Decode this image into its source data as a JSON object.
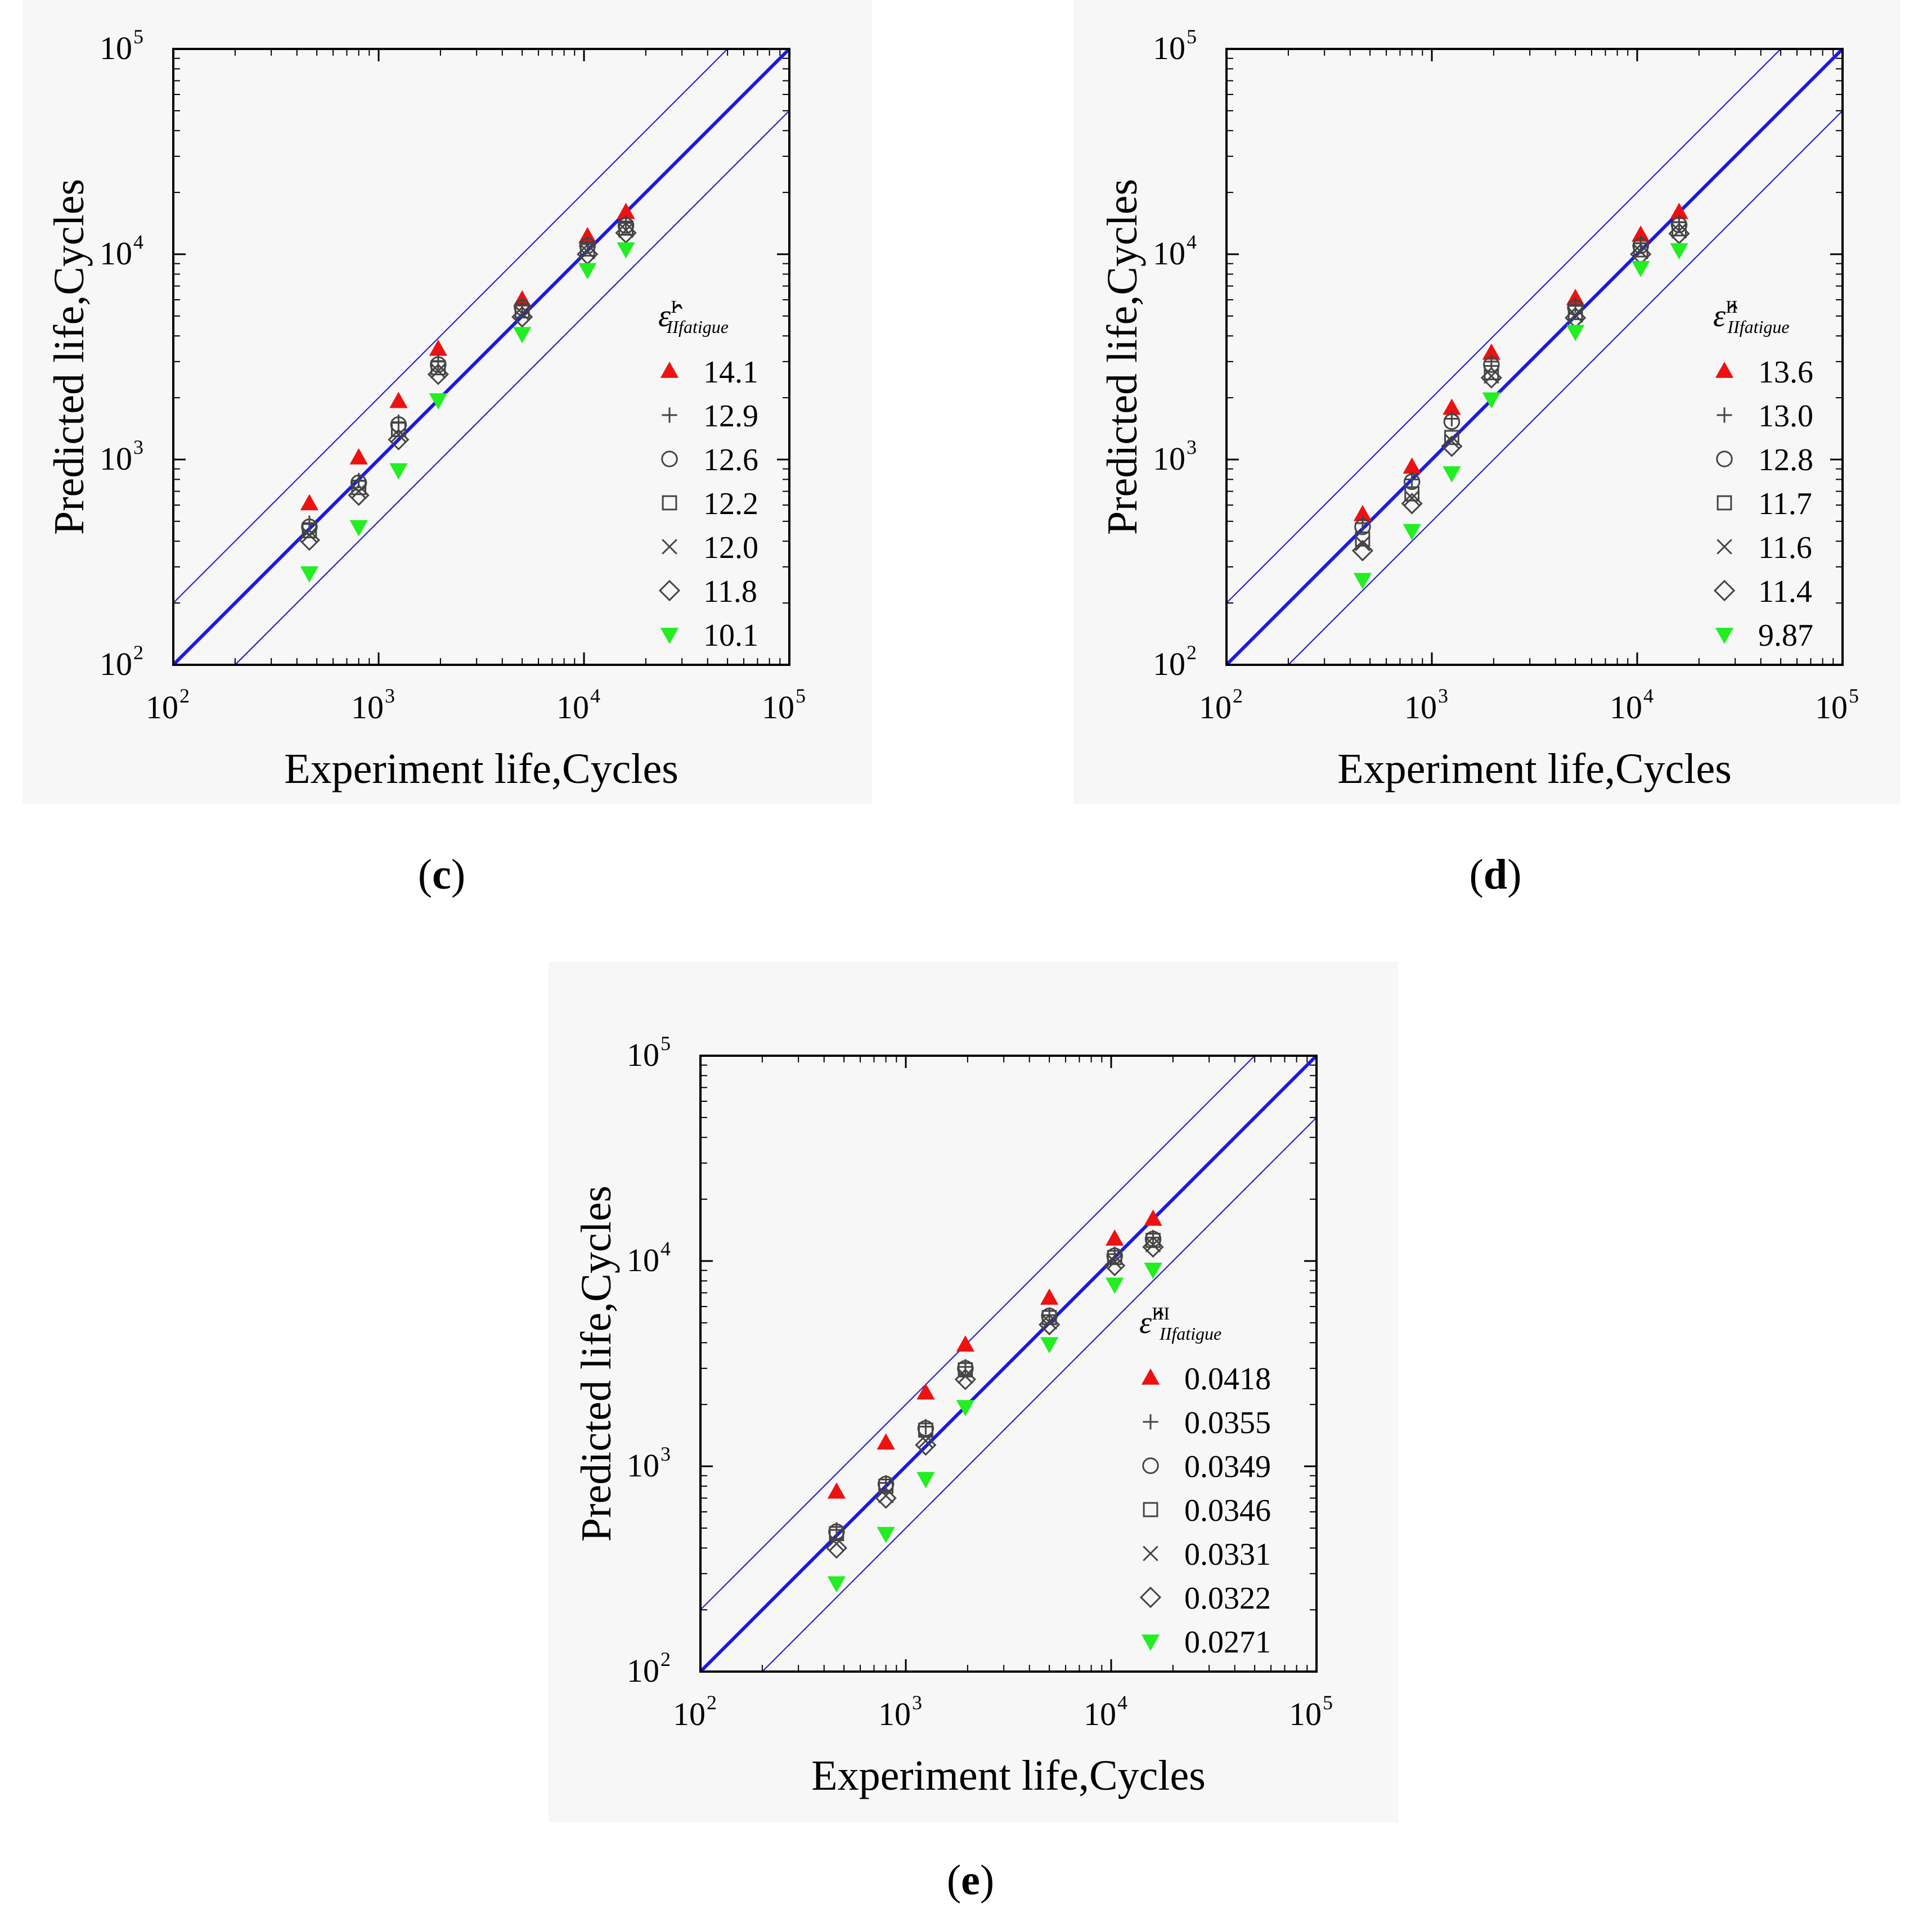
{
  "figure": {
    "panel_labels": [
      "(c)",
      "(d)",
      "(e)"
    ]
  },
  "colors": {
    "ideal_line": "#1a1ae6",
    "band_line": "#2020e0",
    "red_marker": "#ee1111",
    "green_marker": "#22ee22",
    "open_marker": "#444444"
  },
  "chart_data": [
    {
      "type": "scatter",
      "panel": "c",
      "xlabel": "Experiment life,Cycles",
      "ylabel": "Predicted life,Cycles",
      "xscale": "log",
      "yscale": "log",
      "xlim": [
        100,
        100000
      ],
      "ylim": [
        100,
        100000
      ],
      "x_ticks": [
        {
          "base": "10",
          "exp": "2"
        },
        {
          "base": "10",
          "exp": "3"
        },
        {
          "base": "10",
          "exp": "4"
        },
        {
          "base": "10",
          "exp": "5"
        }
      ],
      "y_ticks": [
        {
          "base": "10",
          "exp": "2"
        },
        {
          "base": "10",
          "exp": "3"
        },
        {
          "base": "10",
          "exp": "4"
        },
        {
          "base": "10",
          "exp": "5"
        }
      ],
      "reference_lines": [
        {
          "name": "1:1",
          "factor": 1
        },
        {
          "name": "factor 2 upper",
          "factor": 2
        },
        {
          "name": "factor 2 lower",
          "factor": 0.5
        }
      ],
      "legend_title": {
        "base": "ε̂",
        "sub": "IIfatigue",
        "sup": "I"
      },
      "legend_position": "right-middle",
      "x": [
        460,
        800,
        1250,
        1950,
        5000,
        10400,
        16000
      ],
      "series": [
        {
          "name": "14.1",
          "marker": "triangle-up",
          "values": [
            610,
            1020,
            1920,
            3450,
            6000,
            12200,
            16000
          ]
        },
        {
          "name": "12.9",
          "marker": "plus",
          "values": [
            490,
            790,
            1520,
            3000,
            5650,
            11200,
            14200
          ]
        },
        {
          "name": "12.6",
          "marker": "circle",
          "values": [
            470,
            770,
            1480,
            2900,
            5500,
            11000,
            13800
          ]
        },
        {
          "name": "12.2",
          "marker": "square",
          "values": [
            450,
            730,
            1400,
            2800,
            5300,
            10600,
            13400
          ]
        },
        {
          "name": "12.0",
          "marker": "x",
          "values": [
            430,
            700,
            1320,
            2700,
            5150,
            10300,
            13100
          ]
        },
        {
          "name": "11.8",
          "marker": "diamond",
          "values": [
            405,
            670,
            1250,
            2600,
            4950,
            10000,
            12700
          ]
        },
        {
          "name": "10.1",
          "marker": "triangle-down",
          "values": [
            280,
            470,
            890,
            1950,
            4100,
            8400,
            10600
          ]
        }
      ]
    },
    {
      "type": "scatter",
      "panel": "d",
      "xlabel": "Experiment life,Cycles",
      "ylabel": "Predicted life,Cycles",
      "xscale": "log",
      "yscale": "log",
      "xlim": [
        100,
        100000
      ],
      "ylim": [
        100,
        100000
      ],
      "x_ticks": [
        {
          "base": "10",
          "exp": "2"
        },
        {
          "base": "10",
          "exp": "3"
        },
        {
          "base": "10",
          "exp": "4"
        },
        {
          "base": "10",
          "exp": "5"
        }
      ],
      "y_ticks": [
        {
          "base": "10",
          "exp": "2"
        },
        {
          "base": "10",
          "exp": "3"
        },
        {
          "base": "10",
          "exp": "4"
        },
        {
          "base": "10",
          "exp": "5"
        }
      ],
      "reference_lines": [
        {
          "name": "1:1",
          "factor": 1
        },
        {
          "name": "factor 2 upper",
          "factor": 2
        },
        {
          "name": "factor 2 lower",
          "factor": 0.5
        }
      ],
      "legend_title": {
        "base": "ε̂",
        "sub": "IIfatigue",
        "sup": "II"
      },
      "legend_position": "right-middle",
      "x": [
        460,
        800,
        1250,
        1950,
        5000,
        10400,
        16000
      ],
      "series": [
        {
          "name": "13.6",
          "marker": "triangle-up",
          "values": [
            540,
            920,
            1780,
            3300,
            6100,
            12400,
            16000
          ]
        },
        {
          "name": "13.0",
          "marker": "plus",
          "values": [
            490,
            800,
            1580,
            3000,
            5650,
            11300,
            14300
          ]
        },
        {
          "name": "12.8",
          "marker": "circle",
          "values": [
            470,
            780,
            1530,
            2900,
            5500,
            11000,
            13900
          ]
        },
        {
          "name": "11.7",
          "marker": "square",
          "values": [
            410,
            680,
            1280,
            2650,
            5200,
            10500,
            13300
          ]
        },
        {
          "name": "11.6",
          "marker": "x",
          "values": [
            390,
            650,
            1230,
            2550,
            5050,
            10300,
            13000
          ]
        },
        {
          "name": "11.4",
          "marker": "diamond",
          "values": [
            360,
            610,
            1160,
            2500,
            4900,
            10000,
            12600
          ]
        },
        {
          "name": "9.87",
          "marker": "triangle-down",
          "values": [
            260,
            450,
            860,
            1970,
            4200,
            8600,
            10500
          ]
        }
      ]
    },
    {
      "type": "scatter",
      "panel": "e",
      "xlabel": "Experiment life,Cycles",
      "ylabel": "Predicted life,Cycles",
      "xscale": "log",
      "yscale": "log",
      "xlim": [
        100,
        100000
      ],
      "ylim": [
        100,
        100000
      ],
      "x_ticks": [
        {
          "base": "10",
          "exp": "2"
        },
        {
          "base": "10",
          "exp": "3"
        },
        {
          "base": "10",
          "exp": "4"
        },
        {
          "base": "10",
          "exp": "5"
        }
      ],
      "y_ticks": [
        {
          "base": "10",
          "exp": "2"
        },
        {
          "base": "10",
          "exp": "3"
        },
        {
          "base": "10",
          "exp": "4"
        },
        {
          "base": "10",
          "exp": "5"
        }
      ],
      "reference_lines": [
        {
          "name": "1:1",
          "factor": 1
        },
        {
          "name": "factor 2 upper",
          "factor": 2
        },
        {
          "name": "factor 2 lower",
          "factor": 0.5
        }
      ],
      "legend_title": {
        "base": "ε̂",
        "sub": "IIfatigue",
        "sup": "III"
      },
      "legend_position": "right-middle",
      "x": [
        460,
        800,
        1250,
        1950,
        5000,
        10400,
        16000
      ],
      "series": [
        {
          "name": "0.0418",
          "marker": "triangle-up",
          "values": [
            750,
            1300,
            2280,
            3900,
            6600,
            12800,
            16000
          ]
        },
        {
          "name": "0.0355",
          "marker": "plus",
          "values": [
            490,
            830,
            1560,
            3050,
            5450,
            10800,
            13000
          ]
        },
        {
          "name": "0.0349",
          "marker": "circle",
          "values": [
            480,
            820,
            1530,
            3000,
            5400,
            10600,
            12800
          ]
        },
        {
          "name": "0.0346",
          "marker": "square",
          "values": [
            470,
            800,
            1500,
            2950,
            5300,
            10400,
            12600
          ]
        },
        {
          "name": "0.0331",
          "marker": "x",
          "values": [
            420,
            720,
            1330,
            2750,
            5050,
            9900,
            12000
          ]
        },
        {
          "name": "0.0322",
          "marker": "diamond",
          "values": [
            400,
            700,
            1270,
            2650,
            4900,
            9500,
            11700
          ]
        },
        {
          "name": "0.0271",
          "marker": "triangle-down",
          "values": [
            270,
            470,
            870,
            1950,
            3950,
            7700,
            9100
          ]
        }
      ]
    }
  ]
}
